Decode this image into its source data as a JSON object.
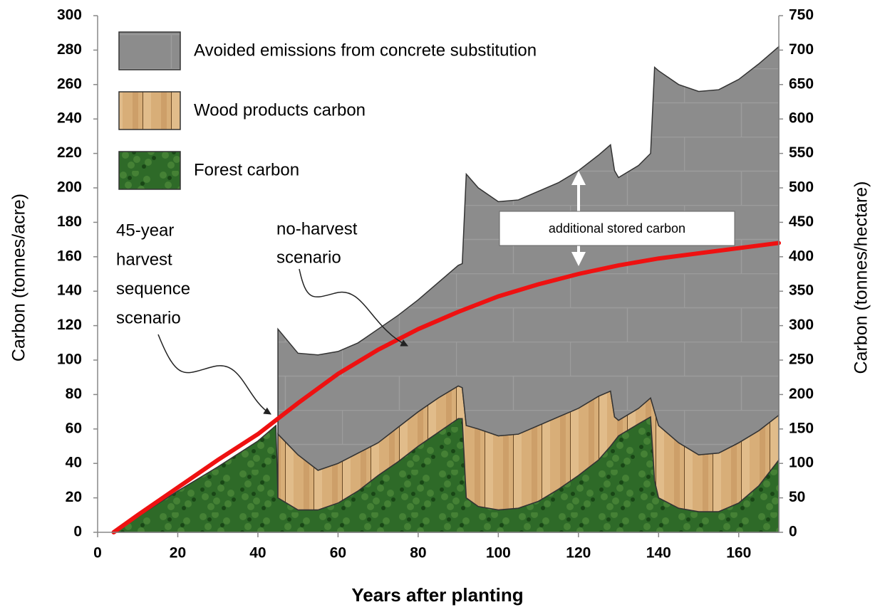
{
  "chart_data": {
    "type": "area",
    "xlabel": "Years after planting",
    "ylabel": "Carbon (tonnes/acre)",
    "y2label": "Carbon (tonnes/hectare)",
    "x": [
      4,
      10,
      20,
      30,
      40,
      44.5,
      45,
      50,
      55,
      60,
      65,
      70,
      75,
      80,
      85,
      90,
      91,
      92,
      95,
      100,
      105,
      110,
      115,
      120,
      125,
      128,
      129,
      130,
      135,
      138,
      139,
      140,
      145,
      150,
      155,
      160,
      165,
      170
    ],
    "series": [
      {
        "name": "Forest carbon",
        "color": "#2e6a28",
        "values": [
          0,
          9,
          24,
          38,
          53,
          62,
          20,
          13,
          13,
          17,
          24,
          33,
          41,
          50,
          58,
          66,
          66,
          20,
          15,
          13,
          14,
          18,
          25,
          33,
          42,
          50,
          53,
          56,
          63,
          67,
          30,
          20,
          14,
          12,
          12,
          17,
          27,
          42
        ]
      },
      {
        "name": "Wood products carbon",
        "color": "#d8ae78",
        "values": [
          null,
          null,
          null,
          null,
          null,
          null,
          37,
          32,
          23,
          23,
          22,
          19,
          20,
          20,
          20,
          19,
          18,
          42,
          45,
          43,
          43,
          44,
          42,
          39,
          37,
          32,
          14,
          9,
          9,
          11,
          40,
          42,
          38,
          33,
          34,
          35,
          32,
          26
        ]
      },
      {
        "name": "Avoided emissions from concrete substitution",
        "color": "#8c8c8c",
        "values": [
          null,
          null,
          null,
          null,
          null,
          null,
          61,
          59,
          67,
          65,
          64,
          66,
          65,
          65,
          67,
          70,
          72,
          146,
          140,
          136,
          136,
          136,
          136,
          138,
          140,
          143,
          143,
          141,
          141,
          142,
          200,
          206,
          208,
          211,
          211,
          211,
          213,
          214
        ]
      }
    ],
    "line": {
      "color": "#ee1111",
      "x": [
        4,
        10,
        20,
        30,
        40,
        45,
        50,
        60,
        70,
        80,
        90,
        100,
        110,
        120,
        130,
        140,
        150,
        160,
        170
      ],
      "values": [
        0,
        10,
        26,
        42,
        57,
        66,
        75,
        92,
        106,
        118,
        128,
        137,
        144,
        150,
        155,
        159,
        162,
        165,
        168
      ]
    },
    "xlim": [
      0,
      170
    ],
    "xticks": [
      0,
      20,
      40,
      60,
      80,
      100,
      120,
      140,
      160
    ],
    "ylim": [
      0,
      300
    ],
    "yticks": [
      0,
      20,
      40,
      60,
      80,
      100,
      120,
      140,
      160,
      180,
      200,
      220,
      240,
      260,
      280,
      300
    ],
    "y2lim": [
      0,
      750
    ],
    "y2ticks": [
      0,
      50,
      100,
      150,
      200,
      250,
      300,
      350,
      400,
      450,
      500,
      550,
      600,
      650,
      700,
      750
    ],
    "legend": "upper left",
    "annotations": {
      "harvest": [
        "45-year",
        "harvest",
        "sequence",
        "scenario"
      ],
      "no_harvest": [
        "no-harvest",
        "scenario"
      ],
      "additional": "additional stored carbon"
    }
  }
}
